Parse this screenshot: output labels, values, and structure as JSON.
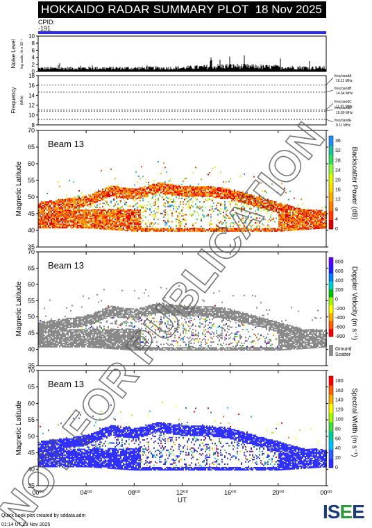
{
  "header": {
    "title": "HOKKAIDO RADAR SUMMARY PLOT",
    "date": "18 Nov 2025",
    "cpid_label": "CPID:",
    "cpid_value": "-191"
  },
  "noise_panel": {
    "ylabel_main": "Noise Level",
    "ylabel_sub": "log scale, lin x 10⁻⁸",
    "ticks": [
      "0",
      "2",
      "4",
      "6",
      "8",
      "10"
    ]
  },
  "freq_panel": {
    "ylabel_main": "Frequency",
    "ylabel_sub": "(MHz)",
    "ticks": [
      "8",
      "10",
      "12",
      "14",
      "16",
      "18"
    ],
    "bands": [
      {
        "name": "freq bandA",
        "freq": "16.11 MHz",
        "value": 16.11
      },
      {
        "name": "freq bandB",
        "freq": "14.64 MHz",
        "value": 14.64
      },
      {
        "name": "freq bandC",
        "freq": "11.07 MHz",
        "value": 11.07
      },
      {
        "name": "freq bandD",
        "freq": "10.80 MHz",
        "value": 10.8
      },
      {
        "name": "freq bandE",
        "freq": "9.11 MHz",
        "value": 9.11
      }
    ]
  },
  "range_panels": [
    {
      "beam": "Beam 13",
      "ylabel": "Magnetic Latitude",
      "colorbar_label": "Backscatter Power (dB)",
      "cb_ticks": [
        "0",
        "4",
        "8",
        "12",
        "16",
        "20",
        "24",
        "28",
        "32",
        "36"
      ],
      "colors": [
        "#e00000",
        "#ff4000",
        "#ff8000",
        "#ffb000",
        "#ffe000",
        "#e0ff00",
        "#90ff40",
        "#30e060",
        "#20c0a0",
        "#2090ff"
      ],
      "ground": false
    },
    {
      "beam": "Beam 13",
      "ylabel": "Magnetic Latitude",
      "colorbar_label": "Doppler Velocity (m s⁻¹)",
      "cb_ticks": [
        "-800",
        "-600",
        "-400",
        "-200",
        "0",
        "200",
        "400",
        "600",
        "800"
      ],
      "colors": [
        "#ff0000",
        "#ff6000",
        "#ffb000",
        "#ffff00",
        "#a0ff00",
        "#00c000",
        "#00d0d0",
        "#0080ff",
        "#2020ff",
        "#6000ff"
      ],
      "ground": true,
      "ground_label_1": "Ground",
      "ground_label_2": "Scatter"
    },
    {
      "beam": "Beam 13",
      "ylabel": "Magnetic Latitude",
      "colorbar_label": "Spectral Width (m s⁻¹)",
      "cb_ticks": [
        "0",
        "20",
        "40",
        "60",
        "80",
        "100",
        "120",
        "140",
        "160",
        "180"
      ],
      "colors": [
        "#3030ff",
        "#3060ff",
        "#00c0ff",
        "#00d0a0",
        "#40e040",
        "#a0ff00",
        "#ffff00",
        "#ffb000",
        "#ff6000",
        "#ff0000"
      ],
      "ground": false
    }
  ],
  "axes": {
    "lat_ticks": [
      "35",
      "40",
      "45",
      "50",
      "55",
      "60",
      "65",
      "70"
    ],
    "x_ticks": [
      "00⁰⁰",
      "04⁰⁰",
      "08⁰⁰",
      "12⁰⁰",
      "16⁰⁰",
      "20⁰⁰",
      "00⁰⁰"
    ],
    "xlabel": "UT"
  },
  "watermark": "NOT FOR PUBLICATION",
  "footer": {
    "line1": "Quick Look plot created by sddata.adm",
    "line2": "01:14 UT 19 Nov 2025",
    "logo": "ISEE"
  },
  "chart_data": [
    {
      "type": "line",
      "title": "Noise Level",
      "xlim": [
        0,
        24
      ],
      "ylim": [
        0,
        10
      ],
      "x": [
        0,
        4,
        8,
        12,
        14,
        16,
        18,
        20,
        24
      ],
      "values": [
        1.0,
        1.1,
        1.1,
        1.2,
        1.5,
        1.8,
        1.6,
        1.4,
        1.2
      ]
    },
    {
      "type": "line",
      "title": "Frequency",
      "xlim": [
        0,
        24
      ],
      "ylim": [
        8,
        18
      ],
      "series": [
        {
          "name": "bandA",
          "values": [
            16.11
          ]
        },
        {
          "name": "bandB",
          "values": [
            14.64
          ]
        },
        {
          "name": "bandC",
          "values": [
            11.07
          ]
        },
        {
          "name": "bandD",
          "values": [
            10.8
          ]
        },
        {
          "name": "bandE",
          "values": [
            9.11
          ]
        }
      ]
    },
    {
      "type": "heatmap",
      "title": "Backscatter Power (dB)",
      "xlim": [
        0,
        24
      ],
      "ylim": [
        35,
        70
      ],
      "zlim": [
        0,
        36
      ],
      "scatter_band_upper_lat": {
        "x": [
          0,
          2,
          4,
          6,
          8,
          9,
          10,
          12,
          14,
          16,
          18,
          20,
          22,
          24
        ],
        "y": [
          47,
          48,
          49,
          52,
          51,
          52,
          53,
          52,
          52,
          51,
          49,
          47,
          45,
          44
        ]
      },
      "scatter_band_lower_lat": {
        "x": [
          0,
          4,
          8,
          12,
          16,
          20,
          24
        ],
        "y": [
          41,
          41,
          40,
          40,
          40,
          40,
          41
        ]
      }
    },
    {
      "type": "heatmap",
      "title": "Doppler Velocity (m s⁻¹)",
      "xlim": [
        0,
        24
      ],
      "ylim": [
        35,
        70
      ],
      "zlim": [
        -800,
        800
      ]
    },
    {
      "type": "heatmap",
      "title": "Spectral Width (m s⁻¹)",
      "xlim": [
        0,
        24
      ],
      "ylim": [
        35,
        70
      ],
      "zlim": [
        0,
        180
      ]
    }
  ]
}
